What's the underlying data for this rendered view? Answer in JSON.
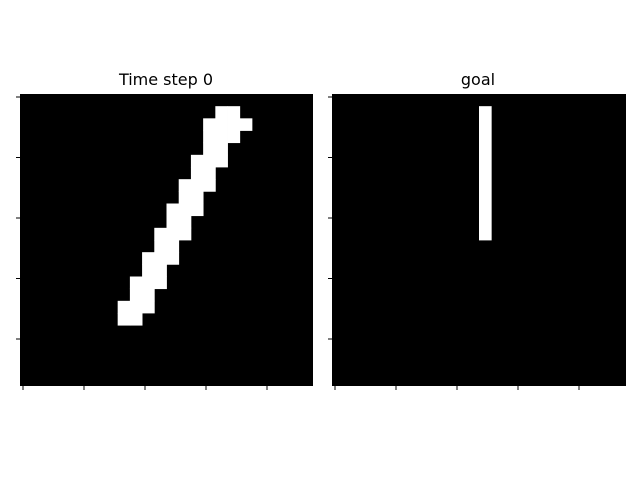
{
  "panels": [
    {
      "title": "Time step 0"
    },
    {
      "title": "goal"
    }
  ],
  "colors": {
    "background": "#000000",
    "foreground": "#ffffff",
    "tick": "#000000",
    "title": "#000000"
  },
  "grid": {
    "rows": 24,
    "cols": 24
  },
  "time_step_0": {
    "stroke": "thin diagonal bar leaning right",
    "cells": [
      [
        1,
        16
      ],
      [
        1,
        17
      ],
      [
        2,
        15
      ],
      [
        2,
        16
      ],
      [
        2,
        17
      ],
      [
        2,
        18
      ],
      [
        3,
        15
      ],
      [
        3,
        16
      ],
      [
        3,
        17
      ],
      [
        4,
        15
      ],
      [
        4,
        16
      ],
      [
        5,
        14
      ],
      [
        5,
        15
      ],
      [
        5,
        16
      ],
      [
        6,
        14
      ],
      [
        6,
        15
      ],
      [
        7,
        13
      ],
      [
        7,
        14
      ],
      [
        7,
        15
      ],
      [
        8,
        13
      ],
      [
        8,
        14
      ],
      [
        9,
        12
      ],
      [
        9,
        13
      ],
      [
        9,
        14
      ],
      [
        10,
        12
      ],
      [
        10,
        13
      ],
      [
        11,
        11
      ],
      [
        11,
        12
      ],
      [
        11,
        13
      ],
      [
        12,
        11
      ],
      [
        12,
        12
      ],
      [
        13,
        10
      ],
      [
        13,
        11
      ],
      [
        13,
        12
      ],
      [
        14,
        10
      ],
      [
        14,
        11
      ],
      [
        15,
        9
      ],
      [
        15,
        10
      ],
      [
        15,
        11
      ],
      [
        16,
        9
      ],
      [
        16,
        10
      ],
      [
        17,
        8
      ],
      [
        17,
        9
      ],
      [
        17,
        10
      ],
      [
        18,
        8
      ],
      [
        18,
        9
      ]
    ]
  },
  "goal": {
    "stroke": "vertical bar",
    "rect": {
      "row_start": 1,
      "row_end": 12,
      "col_start": 12,
      "col_end": 13
    }
  }
}
